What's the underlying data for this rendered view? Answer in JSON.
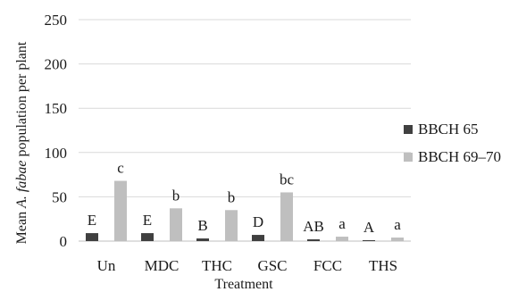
{
  "chart_data": {
    "type": "bar",
    "xlabel": "Treatment",
    "ylabel_prefix": "Mean ",
    "ylabel_italic": "A. fabae",
    "ylabel_suffix": " population per plant",
    "ylim": [
      0,
      250
    ],
    "yticks": [
      "0",
      "50",
      "100",
      "150",
      "200",
      "250"
    ],
    "grid": true,
    "legend_position": "right",
    "categories": [
      "Un",
      "MDC",
      "THC",
      "GSC",
      "FCC",
      "THS"
    ],
    "series": [
      {
        "name": "BBCH 65",
        "color": "#404040",
        "values": [
          9,
          9,
          3,
          7,
          2,
          1
        ],
        "labels": [
          "E",
          "E",
          "B",
          "D",
          "AB",
          "A"
        ]
      },
      {
        "name": "BBCH 69–70",
        "color": "#bfbfbf",
        "values": [
          68,
          37,
          35,
          55,
          5,
          4
        ],
        "labels": [
          "c",
          "b",
          "b",
          "bc",
          "a",
          "a"
        ]
      }
    ]
  }
}
